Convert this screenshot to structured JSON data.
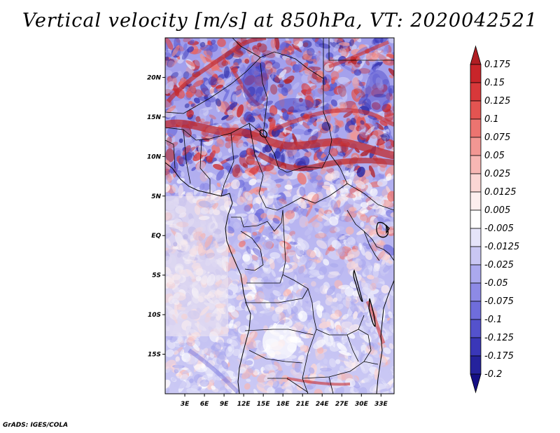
{
  "title": "Vertical velocity [m/s] at 850hPa, VT: 2020042521",
  "credit": "GrADS: IGES/COLA",
  "map": {
    "lon_range": [
      0,
      35
    ],
    "lat_range": [
      -20,
      25
    ],
    "lon_ticks": [
      "3E",
      "6E",
      "9E",
      "12E",
      "15E",
      "18E",
      "21E",
      "24E",
      "27E",
      "30E",
      "33E"
    ],
    "lat_ticks": [
      "20N",
      "15N",
      "10N",
      "5N",
      "EQ",
      "5S",
      "10S",
      "15S"
    ]
  },
  "colorbar": {
    "labels": [
      "0.175",
      "0.15",
      "0.125",
      "0.1",
      "0.075",
      "0.05",
      "0.025",
      "0.0125",
      "0.005",
      "-0.005",
      "-0.0125",
      "-0.025",
      "-0.05",
      "-0.075",
      "-0.1",
      "-0.125",
      "-0.175",
      "-0.2"
    ],
    "colors": [
      "#b01e23",
      "#c8252a",
      "#d8383a",
      "#e35451",
      "#ec7470",
      "#f29793",
      "#f7b7b4",
      "#fbd6d4",
      "#fdeeee",
      "#ffffff",
      "#e5e4f9",
      "#c9c7f3",
      "#aba9ee",
      "#8d8ae6",
      "#6f6ddb",
      "#5452cc",
      "#3a37b8",
      "#25229c",
      "#150f85"
    ]
  }
}
